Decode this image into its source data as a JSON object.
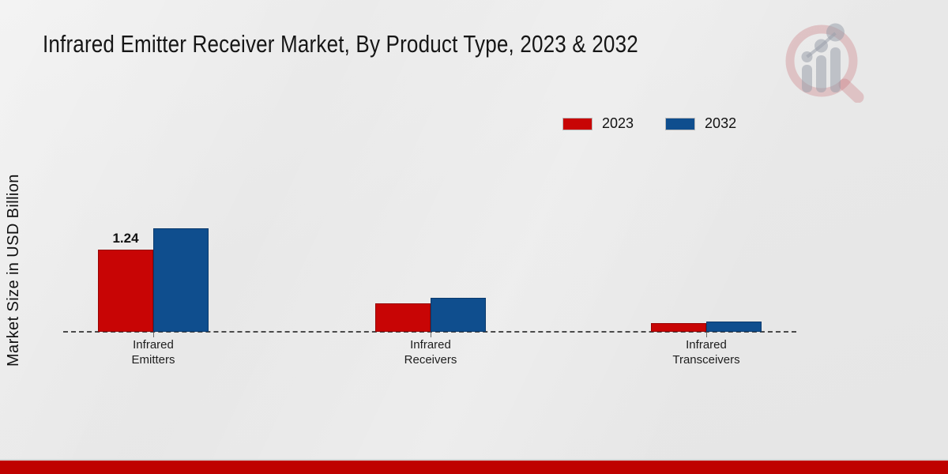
{
  "header": {
    "title": "Infrared Emitter Receiver Market, By Product Type, 2023 & 2032"
  },
  "y_axis": {
    "label": "Market Size in USD Billion"
  },
  "colors": {
    "series_2023": "#c80505",
    "series_2023_border": "#960303",
    "series_2032": "#0f4e8e",
    "series_2032_border": "#0a3a6d",
    "baseline": "#4a4a4a",
    "footer_bar": "#bf0100",
    "background": "#e9e9e9",
    "logo_ring_pink": "#c66a70",
    "logo_gray": "#9aa0ab"
  },
  "chart_data": {
    "type": "bar",
    "title": "Infrared Emitter Receiver Market, By Product Type, 2023 & 2032",
    "ylabel": "Market Size in USD Billion",
    "xlabel": "",
    "categories": [
      "Infrared Emitters",
      "Infrared Receivers",
      "Infrared Transceivers"
    ],
    "category_label_lines": [
      [
        "Infrared",
        "Emitters"
      ],
      [
        "Infrared",
        "Receivers"
      ],
      [
        "Infrared",
        "Transceivers"
      ]
    ],
    "series": [
      {
        "name": "2023",
        "color": "#c80505",
        "values": [
          1.24,
          0.43,
          0.13
        ]
      },
      {
        "name": "2032",
        "color": "#0f4e8e",
        "values": [
          1.56,
          0.51,
          0.16
        ]
      }
    ],
    "bar_value_labels": [
      [
        "1.24",
        "",
        ""
      ],
      [
        "",
        "",
        ""
      ]
    ],
    "ylim": [
      0,
      1.8
    ],
    "grid": false,
    "legend_position": "top-right",
    "baseline_style": "dashed"
  }
}
